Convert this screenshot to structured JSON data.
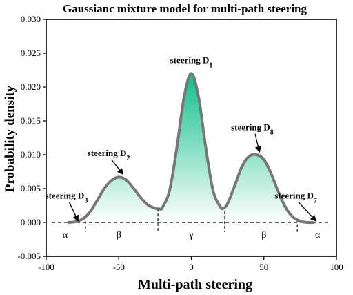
{
  "chart_data": {
    "type": "area",
    "title": "Gaussianc mixture model for multi-path steering",
    "xlabel": "Multi-path steering",
    "ylabel": "Probability density",
    "xlim": [
      -100,
      100
    ],
    "ylim": [
      -0.005,
      0.03
    ],
    "xticks": [
      -100,
      -50,
      0,
      50,
      100
    ],
    "yticks": [
      -0.005,
      0.0,
      0.005,
      0.01,
      0.015,
      0.02,
      0.025,
      0.03
    ],
    "ytick_labels": [
      "-0.005",
      "0.000",
      "0.005",
      "0.010",
      "0.015",
      "0.020",
      "0.025",
      "0.030"
    ],
    "grid": false,
    "curve_points": {
      "x": [
        -85,
        -80,
        -75,
        -70,
        -65,
        -60,
        -55,
        -50,
        -45,
        -40,
        -35,
        -30,
        -25,
        -22,
        -20,
        -15,
        -10,
        -5,
        0,
        5,
        10,
        15,
        20,
        22,
        25,
        30,
        35,
        40,
        45,
        50,
        55,
        60,
        65,
        70,
        75,
        80,
        85
      ],
      "y": [
        0.0,
        0.0001,
        0.0005,
        0.0015,
        0.0032,
        0.005,
        0.0062,
        0.0067,
        0.0063,
        0.0051,
        0.0037,
        0.0026,
        0.0021,
        0.002,
        0.0022,
        0.0047,
        0.011,
        0.0185,
        0.022,
        0.0185,
        0.011,
        0.0047,
        0.0023,
        0.0021,
        0.0028,
        0.0055,
        0.0083,
        0.0098,
        0.01,
        0.0093,
        0.0072,
        0.0045,
        0.0022,
        0.0008,
        0.0002,
        0.0,
        0.0
      ]
    },
    "boundaries": [
      -73,
      -23,
      23,
      73
    ],
    "regions": [
      {
        "label": "α",
        "x": -87
      },
      {
        "label": "β",
        "x": -50
      },
      {
        "label": "γ",
        "x": 0
      },
      {
        "label": "β",
        "x": 50
      },
      {
        "label": "α",
        "x": 87
      }
    ],
    "annotations": [
      {
        "text": "steering D",
        "sub": "1",
        "x": 0,
        "y": 0.0235,
        "arrow_to": null
      },
      {
        "text": "steering D",
        "sub": "2",
        "x": -57,
        "y": 0.0098,
        "arrow_to": [
          -47,
          0.0071
        ]
      },
      {
        "text": "steering D",
        "sub": "8",
        "x": 42,
        "y": 0.0136,
        "arrow_to": [
          47,
          0.0104
        ]
      },
      {
        "text": "steering D",
        "sub": "3",
        "x": -86,
        "y": 0.0035,
        "arrow_to": [
          -78,
          0.0002
        ]
      },
      {
        "text": "steering D",
        "sub": "7",
        "x": 72,
        "y": 0.0035,
        "arrow_to": [
          86,
          0.0002
        ]
      }
    ],
    "colors": {
      "curve": "#777777",
      "fill_top": "#0fbf8a",
      "fill_bottom": "#ffffff",
      "axis": "#000000"
    }
  }
}
